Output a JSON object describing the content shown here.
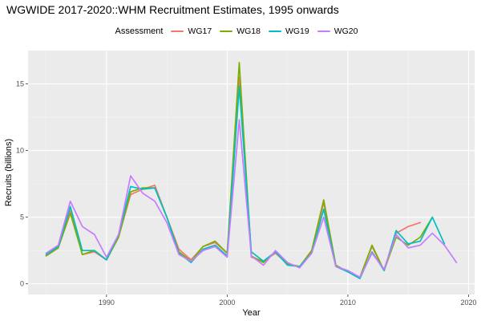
{
  "chart_data": {
    "type": "line",
    "title": "WGWIDE 2017-2020::WHM Recruitment Estimates, 1995 onwards",
    "xlabel": "Year",
    "ylabel": "Recruits (billions)",
    "xlim": [
      1983.5,
      2020.5
    ],
    "ylim": [
      -0.8,
      17.5
    ],
    "x_ticks": [
      1990,
      2000,
      2010,
      2020
    ],
    "y_ticks": [
      0,
      5,
      10,
      15
    ],
    "grid": true,
    "legend": {
      "title": "Assessment",
      "position": "top"
    },
    "series": [
      {
        "name": "WG17",
        "color": "#F8766D",
        "x": [
          1985,
          1986,
          1987,
          1988,
          1989,
          1990,
          1991,
          1992,
          1993,
          1994,
          1995,
          1996,
          1997,
          1998,
          1999,
          2000,
          2001,
          2002,
          2003,
          2004,
          2005,
          2006,
          2007,
          2008,
          2009,
          2010,
          2011,
          2012,
          2013,
          2014,
          2015,
          2016
        ],
        "y": [
          2.1,
          2.7,
          5.5,
          2.2,
          2.4,
          1.8,
          3.5,
          6.7,
          7.1,
          7.4,
          5.0,
          2.6,
          1.8,
          2.8,
          3.1,
          2.3,
          15.5,
          2.0,
          1.7,
          2.3,
          1.5,
          1.3,
          2.4,
          6.1,
          1.4,
          0.9,
          0.5,
          2.8,
          1.0,
          3.8,
          4.3,
          4.6
        ]
      },
      {
        "name": "WG18",
        "color": "#7CAE00",
        "x": [
          1985,
          1986,
          1987,
          1988,
          1989,
          1990,
          1991,
          1992,
          1993,
          1994,
          1995,
          1996,
          1997,
          1998,
          1999,
          2000,
          2001,
          2002,
          2003,
          2004,
          2005,
          2006,
          2007,
          2008,
          2009,
          2010,
          2011,
          2012,
          2013,
          2014,
          2015,
          2016,
          2017
        ],
        "y": [
          2.1,
          2.7,
          5.3,
          2.2,
          2.5,
          1.8,
          3.5,
          6.9,
          7.2,
          7.2,
          5.0,
          2.4,
          1.7,
          2.8,
          3.2,
          2.3,
          16.6,
          2.1,
          1.6,
          2.4,
          1.5,
          1.3,
          2.5,
          6.3,
          1.4,
          0.9,
          0.5,
          2.9,
          1.0,
          3.5,
          2.9,
          3.5,
          5.0
        ]
      },
      {
        "name": "WG19",
        "color": "#00BFC4",
        "x": [
          1985,
          1986,
          1987,
          1988,
          1989,
          1990,
          1991,
          1992,
          1993,
          1994,
          1995,
          1996,
          1997,
          1998,
          1999,
          2000,
          2001,
          2002,
          2003,
          2004,
          2005,
          2006,
          2007,
          2008,
          2009,
          2010,
          2011,
          2012,
          2013,
          2014,
          2015,
          2016,
          2017,
          2018
        ],
        "y": [
          2.2,
          2.8,
          5.8,
          2.5,
          2.5,
          1.8,
          3.7,
          7.3,
          7.1,
          7.2,
          5.0,
          2.3,
          1.6,
          2.6,
          2.9,
          2.1,
          14.8,
          2.4,
          1.7,
          2.4,
          1.4,
          1.3,
          2.3,
          5.6,
          1.3,
          0.9,
          0.4,
          2.4,
          1.0,
          4.0,
          3.0,
          3.2,
          5.0,
          3.0
        ]
      },
      {
        "name": "WG20",
        "color": "#C77CFF",
        "x": [
          1985,
          1986,
          1987,
          1988,
          1989,
          1990,
          1991,
          1992,
          1993,
          1994,
          1995,
          1996,
          1997,
          1998,
          1999,
          2000,
          2001,
          2002,
          2003,
          2004,
          2005,
          2006,
          2007,
          2008,
          2009,
          2010,
          2011,
          2012,
          2013,
          2014,
          2015,
          2016,
          2017,
          2018,
          2019
        ],
        "y": [
          2.3,
          2.9,
          6.2,
          4.3,
          3.7,
          2.0,
          3.7,
          8.1,
          6.8,
          6.2,
          4.6,
          2.2,
          1.7,
          2.5,
          2.8,
          2.0,
          12.3,
          2.1,
          1.4,
          2.5,
          1.6,
          1.2,
          2.3,
          5.0,
          1.3,
          1.0,
          0.5,
          2.3,
          1.1,
          3.7,
          2.7,
          2.9,
          3.8,
          2.9,
          1.6
        ]
      }
    ]
  }
}
